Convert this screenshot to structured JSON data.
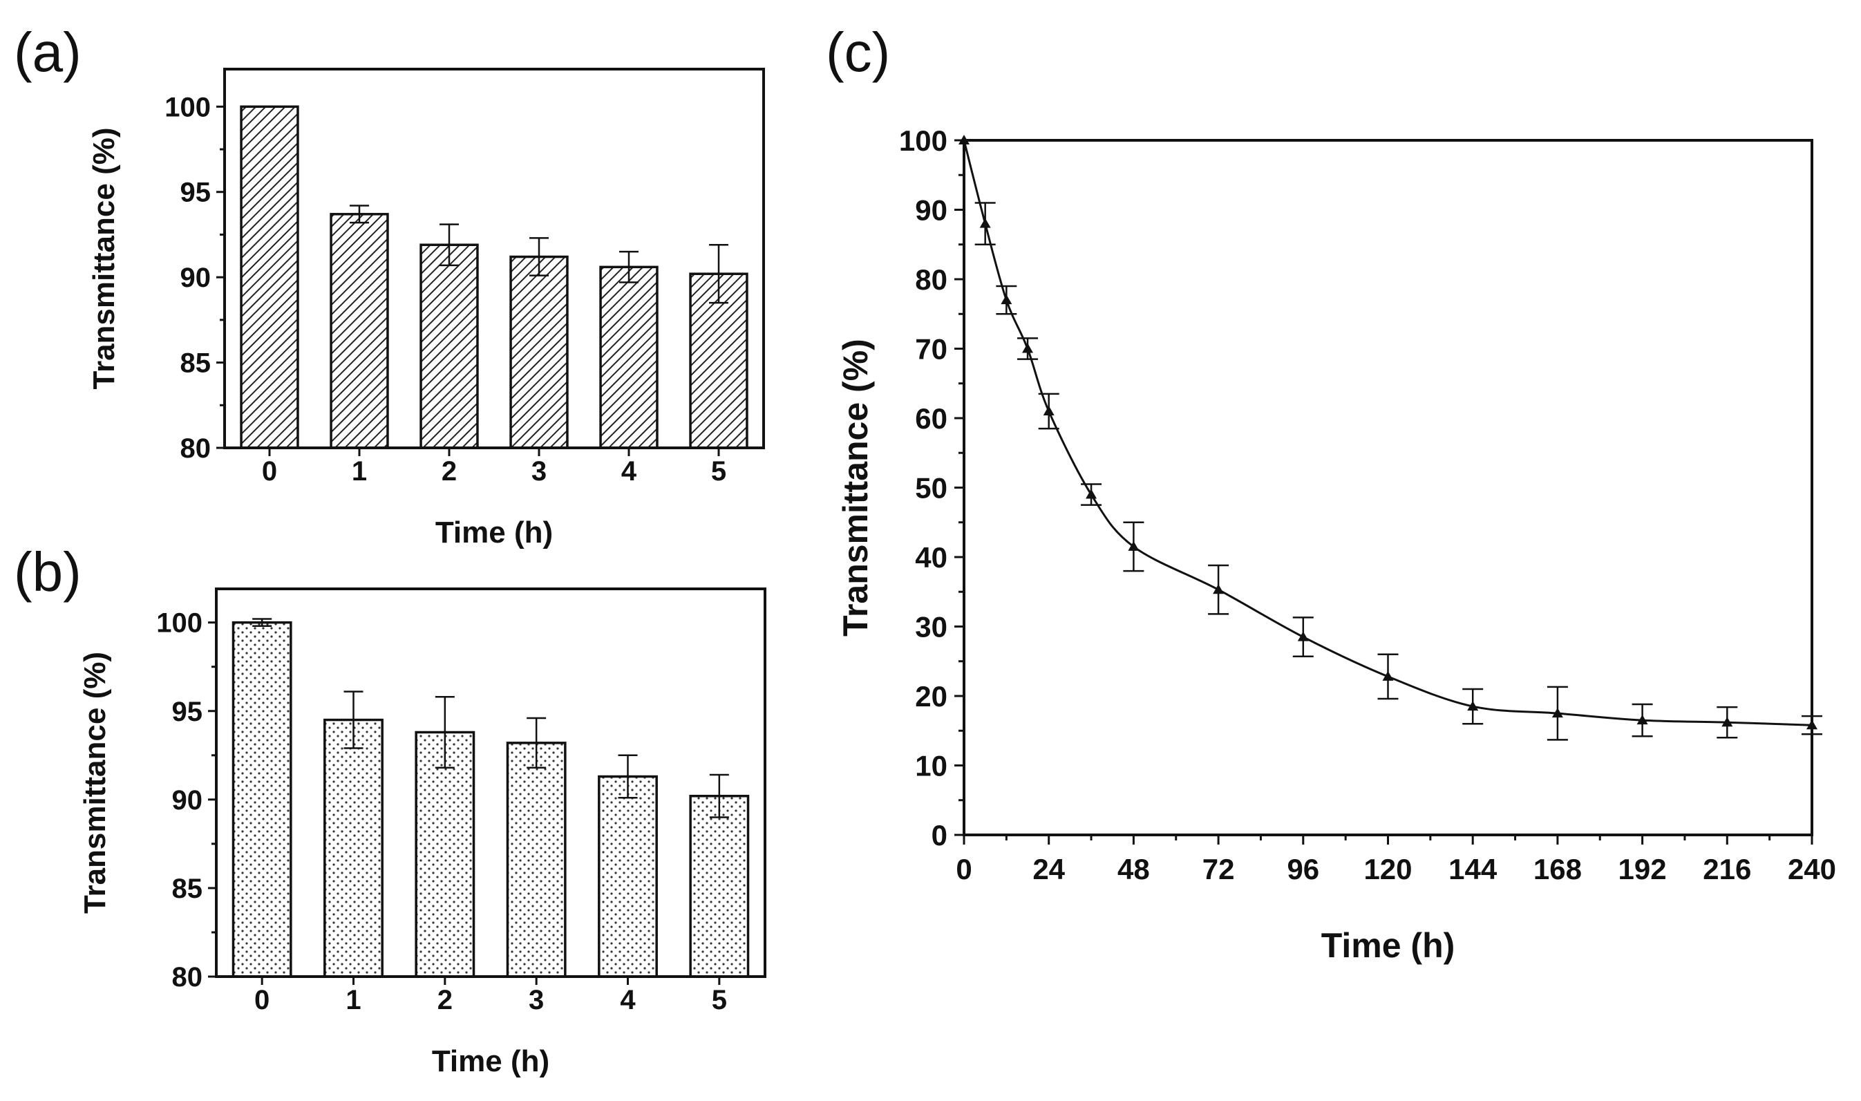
{
  "panels": {
    "a": {
      "label": "(a)"
    },
    "b": {
      "label": "(b)"
    },
    "c": {
      "label": "(c)"
    }
  },
  "chart_data": [
    {
      "id": "a",
      "type": "bar",
      "pattern": "diagonal-hatch",
      "categories": [
        "0",
        "1",
        "2",
        "3",
        "4",
        "5"
      ],
      "values": [
        100,
        93.7,
        91.9,
        91.2,
        90.6,
        90.2
      ],
      "errors": [
        0,
        0.5,
        1.2,
        1.1,
        0.9,
        1.7
      ],
      "xlabel": "Time (h)",
      "ylabel": "Transmittance (%)",
      "ylim": [
        80,
        102.2
      ],
      "yticks": [
        80,
        85,
        90,
        95,
        100
      ]
    },
    {
      "id": "b",
      "type": "bar",
      "pattern": "dots",
      "categories": [
        "0",
        "1",
        "2",
        "3",
        "4",
        "5"
      ],
      "values": [
        100,
        94.5,
        93.8,
        93.2,
        91.3,
        90.2
      ],
      "errors": [
        0.2,
        1.6,
        2.0,
        1.4,
        1.2,
        1.2
      ],
      "xlabel": "Time (h)",
      "ylabel": "Transmittance (%)",
      "ylim": [
        80,
        101.9
      ],
      "yticks": [
        80,
        85,
        90,
        95,
        100
      ]
    },
    {
      "id": "c",
      "type": "line",
      "marker": "triangle",
      "x": [
        0,
        6,
        12,
        18,
        24,
        36,
        48,
        72,
        96,
        120,
        144,
        168,
        192,
        216,
        240
      ],
      "y": [
        100,
        88,
        77,
        70,
        61,
        49,
        41.5,
        35.3,
        28.5,
        22.8,
        18.5,
        17.5,
        16.5,
        16.2,
        15.8
      ],
      "errors": [
        0,
        3,
        2,
        1.5,
        2.5,
        1.5,
        3.5,
        3.5,
        2.8,
        3.2,
        2.5,
        3.8,
        2.3,
        2.2,
        1.3
      ],
      "xlabel": "Time (h)",
      "ylabel": "Transmittance (%)",
      "xlim": [
        0,
        240
      ],
      "ylim": [
        0,
        100
      ],
      "xticks": [
        0,
        24,
        48,
        72,
        96,
        120,
        144,
        168,
        192,
        216,
        240
      ],
      "yticks": [
        0,
        10,
        20,
        30,
        40,
        50,
        60,
        70,
        80,
        90,
        100
      ]
    }
  ]
}
